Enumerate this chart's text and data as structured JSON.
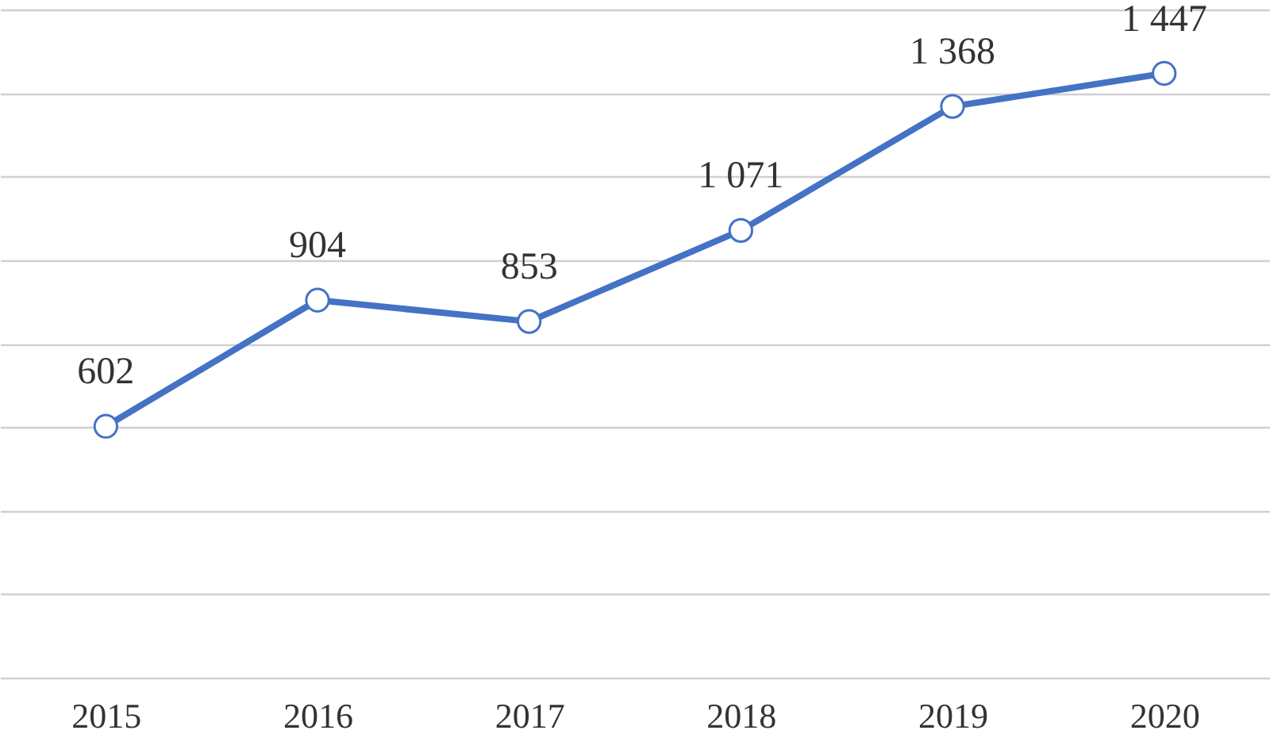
{
  "chart_data": {
    "type": "line",
    "categories": [
      "2015",
      "2016",
      "2017",
      "2018",
      "2019",
      "2020"
    ],
    "series": [
      {
        "color": "#4472c4",
        "values": [
          602,
          904,
          853,
          1071,
          1368,
          1447
        ],
        "value_labels": [
          "602",
          "904",
          "853",
          "1 071",
          "1 368",
          "1 447"
        ]
      }
    ],
    "ylim": [
      0,
      1600
    ],
    "yticks": [
      {
        "value": 0,
        "label": null
      },
      {
        "value": 200,
        "label": null
      },
      {
        "value": 400,
        "label": null
      },
      {
        "value": 600,
        "label": null
      },
      {
        "value": 800,
        "label": null
      },
      {
        "value": 1000,
        "label": null
      },
      {
        "value": 1200,
        "label": null
      },
      {
        "value": 1400,
        "label": null
      },
      {
        "value": 1600,
        "label": null
      }
    ],
    "grid": "y",
    "tick_labels": "x",
    "marker": "circle",
    "line_style": "solid"
  }
}
